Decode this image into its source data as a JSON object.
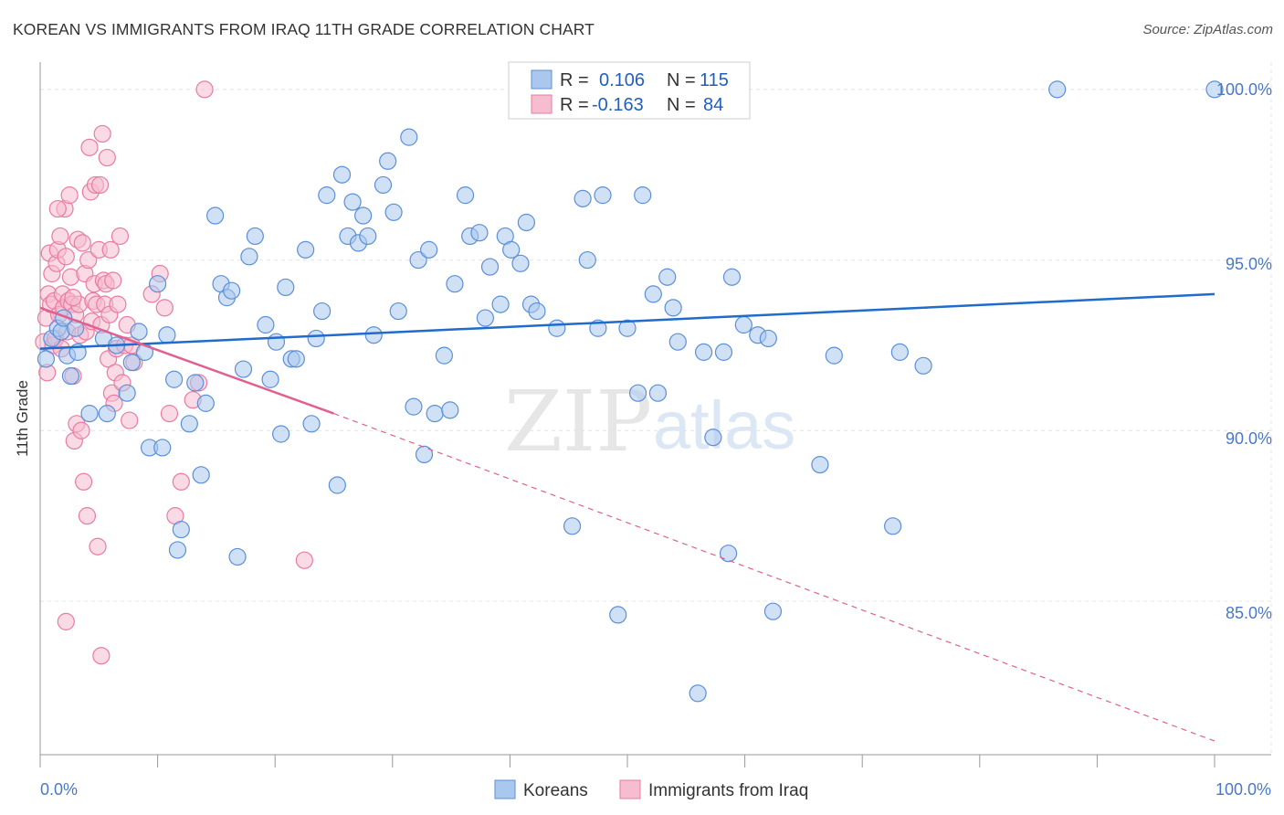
{
  "title": "KOREAN VS IMMIGRANTS FROM IRAQ 11TH GRADE CORRELATION CHART",
  "source": "Source: ZipAtlas.com",
  "watermark": {
    "zip": "ZIP",
    "atlas": "atlas"
  },
  "colors": {
    "korean_fill": "#aac8ee",
    "korean_stroke": "#5b8fd8",
    "korean_line": "#1f6ccc",
    "iraq_fill": "#f6bcd0",
    "iraq_stroke": "#ea7ba0",
    "iraq_line": "#e06090",
    "tick_text": "#4a78c8",
    "grid": "#e4e4e4"
  },
  "legend": {
    "rows": [
      {
        "r_label": "R =",
        "r_value": "0.106",
        "n_label": "N =",
        "n_value": "115"
      },
      {
        "r_label": "R =",
        "r_value": "-0.163",
        "n_label": "N =",
        "n_value": "84"
      }
    ]
  },
  "bottom_legend": [
    "Koreans",
    "Immigrants from Iraq"
  ],
  "chart_data": {
    "type": "scatter",
    "title": "KOREAN VS IMMIGRANTS FROM IRAQ 11TH GRADE CORRELATION CHART",
    "xlabel": "",
    "ylabel": "11th Grade",
    "xlim": [
      0,
      100
    ],
    "ylim": [
      80.5,
      100.8
    ],
    "x_tick_labels": [
      "0.0%",
      "100.0%"
    ],
    "y_ticks": [
      85,
      90,
      95,
      100
    ],
    "y_tick_labels": [
      "85.0%",
      "90.0%",
      "95.0%",
      "100.0%"
    ],
    "series": [
      {
        "name": "Koreans",
        "r": 0.106,
        "n": 115,
        "trend": {
          "x0": 0,
          "y0": 92.4,
          "x1": 100,
          "y1": 94.0
        },
        "points": [
          [
            0.5,
            92.1
          ],
          [
            1.0,
            92.7
          ],
          [
            1.5,
            93.0
          ],
          [
            1.8,
            92.9
          ],
          [
            2.0,
            93.3
          ],
          [
            2.3,
            92.2
          ],
          [
            2.6,
            91.6
          ],
          [
            3.0,
            93.0
          ],
          [
            3.2,
            92.3
          ],
          [
            4.2,
            90.5
          ],
          [
            5.7,
            90.5
          ],
          [
            5.4,
            92.7
          ],
          [
            6.5,
            92.5
          ],
          [
            7.4,
            91.1
          ],
          [
            7.8,
            92.0
          ],
          [
            8.4,
            92.9
          ],
          [
            8.9,
            92.3
          ],
          [
            9.3,
            89.5
          ],
          [
            10.0,
            94.3
          ],
          [
            10.4,
            89.5
          ],
          [
            10.8,
            92.8
          ],
          [
            11.4,
            91.5
          ],
          [
            12.0,
            87.1
          ],
          [
            11.7,
            86.5
          ],
          [
            12.7,
            90.2
          ],
          [
            13.2,
            91.4
          ],
          [
            13.7,
            88.7
          ],
          [
            14.1,
            90.8
          ],
          [
            14.9,
            96.3
          ],
          [
            15.4,
            94.3
          ],
          [
            15.9,
            93.9
          ],
          [
            16.3,
            94.1
          ],
          [
            16.8,
            86.3
          ],
          [
            17.3,
            91.8
          ],
          [
            17.8,
            95.1
          ],
          [
            18.3,
            95.7
          ],
          [
            19.2,
            93.1
          ],
          [
            19.6,
            91.5
          ],
          [
            20.1,
            92.6
          ],
          [
            20.5,
            89.9
          ],
          [
            20.9,
            94.2
          ],
          [
            21.4,
            92.1
          ],
          [
            21.8,
            92.1
          ],
          [
            22.6,
            95.3
          ],
          [
            23.1,
            90.2
          ],
          [
            23.5,
            92.7
          ],
          [
            24.0,
            93.5
          ],
          [
            24.4,
            96.9
          ],
          [
            25.3,
            88.4
          ],
          [
            25.7,
            97.5
          ],
          [
            26.2,
            95.7
          ],
          [
            26.6,
            96.7
          ],
          [
            27.1,
            95.5
          ],
          [
            27.5,
            96.3
          ],
          [
            27.9,
            95.7
          ],
          [
            28.4,
            92.8
          ],
          [
            29.2,
            97.2
          ],
          [
            29.6,
            97.9
          ],
          [
            30.1,
            96.4
          ],
          [
            30.5,
            93.5
          ],
          [
            31.4,
            98.6
          ],
          [
            31.8,
            90.7
          ],
          [
            32.2,
            95.0
          ],
          [
            32.7,
            89.3
          ],
          [
            33.1,
            95.3
          ],
          [
            33.6,
            90.5
          ],
          [
            34.4,
            92.2
          ],
          [
            34.9,
            90.6
          ],
          [
            35.3,
            94.3
          ],
          [
            36.2,
            96.9
          ],
          [
            36.6,
            95.7
          ],
          [
            37.4,
            95.8
          ],
          [
            37.9,
            93.3
          ],
          [
            38.3,
            94.8
          ],
          [
            39.2,
            93.7
          ],
          [
            39.6,
            95.7
          ],
          [
            40.1,
            95.3
          ],
          [
            40.9,
            94.9
          ],
          [
            41.4,
            96.1
          ],
          [
            41.8,
            93.7
          ],
          [
            42.3,
            93.5
          ],
          [
            44.0,
            93.0
          ],
          [
            45.3,
            87.2
          ],
          [
            46.2,
            96.8
          ],
          [
            46.6,
            95.0
          ],
          [
            47.5,
            93.0
          ],
          [
            47.9,
            96.9
          ],
          [
            49.2,
            84.6
          ],
          [
            50.0,
            93.0
          ],
          [
            50.9,
            91.1
          ],
          [
            51.3,
            96.9
          ],
          [
            52.2,
            94.0
          ],
          [
            52.6,
            91.1
          ],
          [
            53.4,
            94.5
          ],
          [
            53.9,
            93.6
          ],
          [
            54.3,
            92.6
          ],
          [
            56.0,
            82.3
          ],
          [
            56.5,
            92.3
          ],
          [
            57.3,
            89.8
          ],
          [
            58.6,
            86.4
          ],
          [
            58.2,
            92.3
          ],
          [
            58.9,
            94.5
          ],
          [
            59.9,
            93.1
          ],
          [
            61.1,
            92.8
          ],
          [
            62.0,
            92.7
          ],
          [
            62.4,
            84.7
          ],
          [
            66.4,
            89.0
          ],
          [
            67.6,
            92.2
          ],
          [
            72.6,
            87.2
          ],
          [
            73.2,
            92.3
          ],
          [
            75.2,
            91.9
          ],
          [
            86.6,
            100.0
          ],
          [
            100.0,
            100.0
          ]
        ]
      },
      {
        "name": "Immigrants from Iraq",
        "r": -0.163,
        "n": 84,
        "trend": {
          "x0": 0,
          "y0": 93.6,
          "x1": 25,
          "y1": 90.5,
          "dash_x1": 100,
          "dash_y1": 80.9
        },
        "points": [
          [
            0.3,
            92.6
          ],
          [
            0.5,
            93.3
          ],
          [
            0.6,
            91.7
          ],
          [
            0.7,
            94.0
          ],
          [
            0.8,
            95.2
          ],
          [
            0.9,
            93.7
          ],
          [
            1.0,
            94.6
          ],
          [
            1.1,
            92.5
          ],
          [
            1.2,
            93.8
          ],
          [
            1.3,
            92.7
          ],
          [
            1.4,
            94.9
          ],
          [
            1.5,
            95.3
          ],
          [
            1.6,
            93.4
          ],
          [
            1.7,
            95.7
          ],
          [
            1.8,
            92.4
          ],
          [
            1.9,
            94.0
          ],
          [
            2.0,
            93.6
          ],
          [
            2.1,
            96.5
          ],
          [
            2.2,
            95.1
          ],
          [
            2.3,
            92.9
          ],
          [
            2.4,
            93.8
          ],
          [
            2.5,
            96.9
          ],
          [
            2.6,
            94.5
          ],
          [
            2.7,
            93.7
          ],
          [
            2.8,
            91.6
          ],
          [
            2.9,
            89.7
          ],
          [
            3.0,
            93.4
          ],
          [
            3.1,
            90.2
          ],
          [
            3.2,
            95.6
          ],
          [
            3.3,
            93.7
          ],
          [
            3.4,
            92.8
          ],
          [
            3.5,
            90.0
          ],
          [
            3.6,
            95.5
          ],
          [
            3.7,
            88.5
          ],
          [
            3.8,
            94.6
          ],
          [
            3.9,
            92.9
          ],
          [
            4.0,
            87.5
          ],
          [
            4.1,
            95.0
          ],
          [
            4.2,
            98.3
          ],
          [
            4.3,
            97.0
          ],
          [
            4.4,
            93.2
          ],
          [
            4.5,
            93.8
          ],
          [
            4.6,
            94.3
          ],
          [
            4.7,
            97.2
          ],
          [
            4.8,
            93.7
          ],
          [
            4.9,
            86.6
          ],
          [
            5.0,
            95.3
          ],
          [
            5.1,
            97.2
          ],
          [
            5.2,
            93.1
          ],
          [
            5.3,
            98.7
          ],
          [
            5.4,
            94.4
          ],
          [
            5.5,
            93.7
          ],
          [
            5.6,
            94.3
          ],
          [
            5.7,
            98.0
          ],
          [
            5.8,
            92.1
          ],
          [
            5.9,
            93.4
          ],
          [
            6.0,
            95.3
          ],
          [
            6.1,
            91.1
          ],
          [
            6.2,
            94.4
          ],
          [
            6.3,
            90.8
          ],
          [
            6.4,
            91.7
          ],
          [
            6.5,
            92.4
          ],
          [
            6.6,
            93.7
          ],
          [
            6.8,
            95.7
          ],
          [
            7.0,
            91.4
          ],
          [
            7.2,
            92.5
          ],
          [
            7.4,
            93.1
          ],
          [
            7.6,
            90.3
          ],
          [
            7.8,
            92.5
          ],
          [
            8.0,
            92.0
          ],
          [
            9.5,
            94.0
          ],
          [
            10.2,
            94.6
          ],
          [
            10.6,
            93.6
          ],
          [
            11.0,
            90.5
          ],
          [
            11.5,
            87.5
          ],
          [
            12.0,
            88.5
          ],
          [
            13.0,
            90.9
          ],
          [
            13.5,
            91.4
          ],
          [
            14.0,
            100.0
          ],
          [
            22.5,
            86.2
          ],
          [
            1.5,
            96.5
          ],
          [
            2.8,
            93.9
          ],
          [
            2.2,
            84.4
          ],
          [
            5.2,
            83.4
          ]
        ]
      }
    ]
  }
}
